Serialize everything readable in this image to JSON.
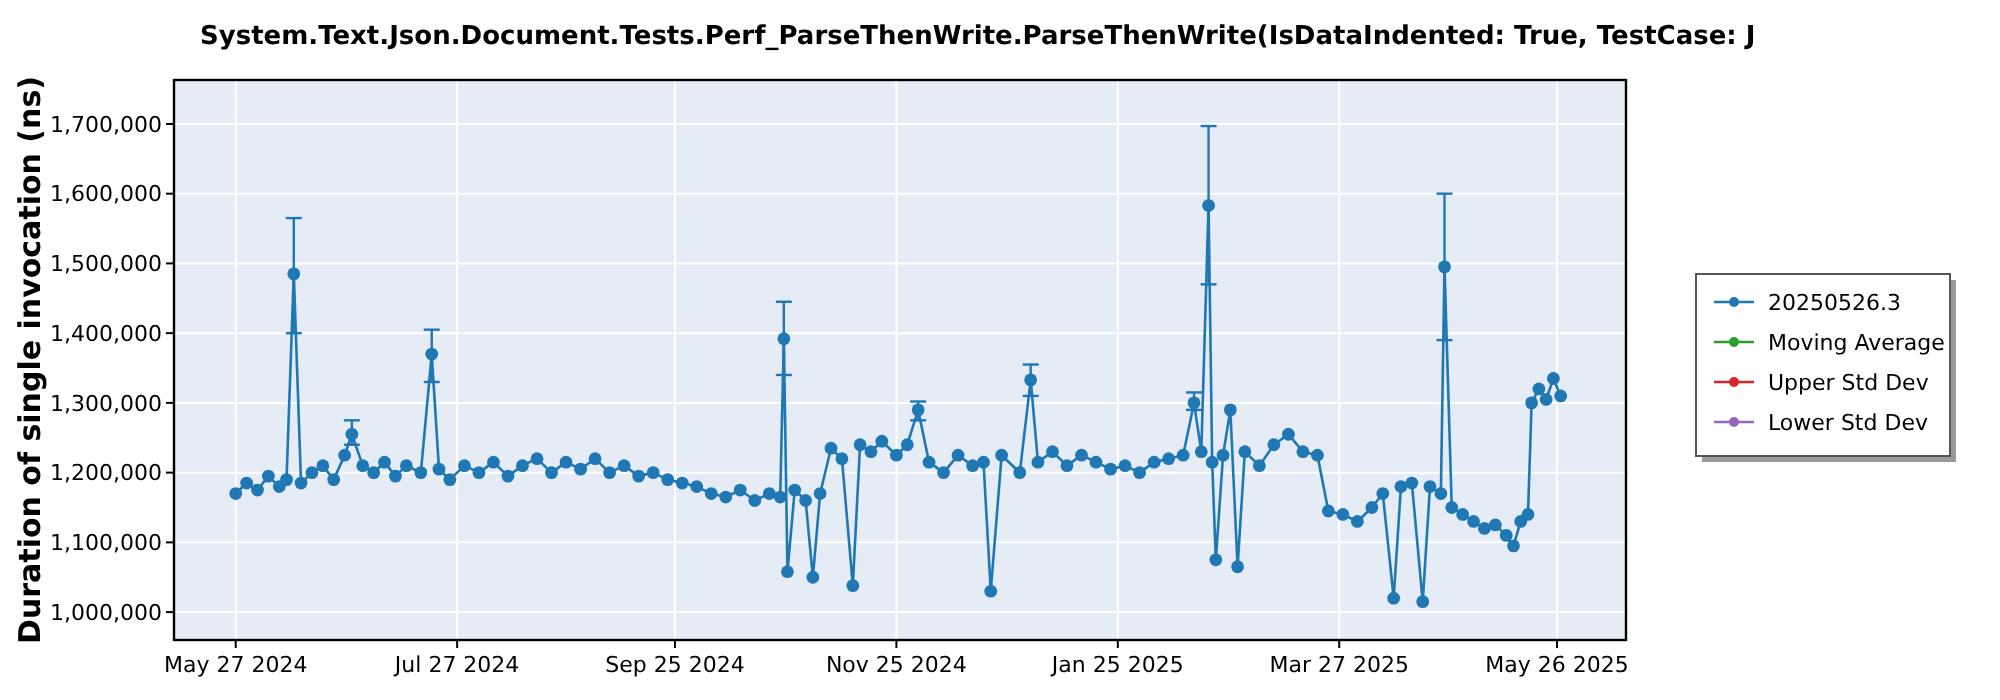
{
  "chart_data": {
    "type": "line",
    "title": "System.Text.Json.Document.Tests.Perf_ParseThenWrite.ParseThenWrite(IsDataIndented: True, TestCase: J",
    "ylabel": "Duration of single invocation (ns)",
    "xlim": [
      "2024-05-10",
      "2025-06-14"
    ],
    "xticks": [
      {
        "value": "2024-05-27",
        "label": "May 27 2024"
      },
      {
        "value": "2024-07-27",
        "label": "Jul 27 2024"
      },
      {
        "value": "2024-09-25",
        "label": "Sep 25 2024"
      },
      {
        "value": "2024-11-25",
        "label": "Nov 25 2024"
      },
      {
        "value": "2025-01-25",
        "label": "Jan 25 2025"
      },
      {
        "value": "2025-03-27",
        "label": "Mar 27 2025"
      },
      {
        "value": "2025-05-26",
        "label": "May 26 2025"
      }
    ],
    "ylim": [
      960000,
      1763000
    ],
    "yticks": [
      {
        "value": 1000000,
        "label": "1,000,000"
      },
      {
        "value": 1100000,
        "label": "1,100,000"
      },
      {
        "value": 1200000,
        "label": "1,200,000"
      },
      {
        "value": 1300000,
        "label": "1,300,000"
      },
      {
        "value": 1400000,
        "label": "1,400,000"
      },
      {
        "value": 1500000,
        "label": "1,500,000"
      },
      {
        "value": 1600000,
        "label": "1,600,000"
      },
      {
        "value": 1700000,
        "label": "1,700,000"
      }
    ],
    "grid": true,
    "legend": "right",
    "marker": "circle",
    "line_style": "solid",
    "series": [
      {
        "name": "20250526.3",
        "color": "#1f77b4",
        "x": [
          "2024-05-27",
          "2024-05-30",
          "2024-06-02",
          "2024-06-05",
          "2024-06-08",
          "2024-06-10",
          "2024-06-12",
          "2024-06-14",
          "2024-06-17",
          "2024-06-20",
          "2024-06-23",
          "2024-06-26",
          "2024-06-28",
          "2024-07-01",
          "2024-07-04",
          "2024-07-07",
          "2024-07-10",
          "2024-07-13",
          "2024-07-17",
          "2024-07-20",
          "2024-07-22",
          "2024-07-25",
          "2024-07-29",
          "2024-08-02",
          "2024-08-06",
          "2024-08-10",
          "2024-08-14",
          "2024-08-18",
          "2024-08-22",
          "2024-08-26",
          "2024-08-30",
          "2024-09-03",
          "2024-09-07",
          "2024-09-11",
          "2024-09-15",
          "2024-09-19",
          "2024-09-23",
          "2024-09-27",
          "2024-10-01",
          "2024-10-05",
          "2024-10-09",
          "2024-10-13",
          "2024-10-17",
          "2024-10-21",
          "2024-10-24",
          "2024-10-25",
          "2024-10-26",
          "2024-10-28",
          "2024-10-31",
          "2024-11-02",
          "2024-11-04",
          "2024-11-07",
          "2024-11-10",
          "2024-11-13",
          "2024-11-15",
          "2024-11-18",
          "2024-11-21",
          "2024-11-25",
          "2024-11-28",
          "2024-12-01",
          "2024-12-04",
          "2024-12-08",
          "2024-12-12",
          "2024-12-16",
          "2024-12-19",
          "2024-12-21",
          "2024-12-24",
          "2024-12-29",
          "2025-01-01",
          "2025-01-03",
          "2025-01-07",
          "2025-01-11",
          "2025-01-15",
          "2025-01-19",
          "2025-01-23",
          "2025-01-27",
          "2025-01-31",
          "2025-02-04",
          "2025-02-08",
          "2025-02-12",
          "2025-02-15",
          "2025-02-17",
          "2025-02-19",
          "2025-02-20",
          "2025-02-21",
          "2025-02-23",
          "2025-02-25",
          "2025-02-27",
          "2025-03-01",
          "2025-03-05",
          "2025-03-09",
          "2025-03-13",
          "2025-03-17",
          "2025-03-21",
          "2025-03-24",
          "2025-03-28",
          "2025-04-01",
          "2025-04-05",
          "2025-04-08",
          "2025-04-11",
          "2025-04-13",
          "2025-04-16",
          "2025-04-19",
          "2025-04-21",
          "2025-04-24",
          "2025-04-25",
          "2025-04-27",
          "2025-04-30",
          "2025-05-03",
          "2025-05-06",
          "2025-05-09",
          "2025-05-12",
          "2025-05-14",
          "2025-05-16",
          "2025-05-18",
          "2025-05-19",
          "2025-05-21",
          "2025-05-23",
          "2025-05-25",
          "2025-05-27"
        ],
        "values": [
          1170000,
          1185000,
          1175000,
          1195000,
          1180000,
          1190000,
          1485000,
          1185000,
          1200000,
          1210000,
          1190000,
          1225000,
          1255000,
          1210000,
          1200000,
          1215000,
          1195000,
          1210000,
          1200000,
          1370000,
          1205000,
          1190000,
          1210000,
          1200000,
          1215000,
          1195000,
          1210000,
          1220000,
          1200000,
          1215000,
          1205000,
          1220000,
          1200000,
          1210000,
          1195000,
          1200000,
          1190000,
          1185000,
          1180000,
          1170000,
          1165000,
          1175000,
          1160000,
          1170000,
          1165000,
          1392000,
          1058000,
          1175000,
          1160000,
          1050000,
          1170000,
          1235000,
          1220000,
          1038000,
          1240000,
          1230000,
          1245000,
          1225000,
          1240000,
          1290000,
          1215000,
          1200000,
          1225000,
          1210000,
          1215000,
          1030000,
          1225000,
          1200000,
          1333000,
          1215000,
          1230000,
          1210000,
          1225000,
          1215000,
          1205000,
          1210000,
          1200000,
          1215000,
          1220000,
          1225000,
          1300000,
          1230000,
          1583000,
          1215000,
          1075000,
          1225000,
          1290000,
          1065000,
          1230000,
          1210000,
          1240000,
          1255000,
          1230000,
          1225000,
          1145000,
          1140000,
          1130000,
          1150000,
          1170000,
          1020000,
          1180000,
          1185000,
          1015000,
          1180000,
          1170000,
          1495000,
          1150000,
          1140000,
          1130000,
          1120000,
          1125000,
          1110000,
          1095000,
          1130000,
          1140000,
          1300000,
          1320000,
          1305000,
          1335000,
          1310000
        ],
        "errors": [
          null,
          null,
          null,
          null,
          null,
          null,
          [
            1400000,
            1565000
          ],
          null,
          null,
          null,
          null,
          null,
          [
            1240000,
            1275000
          ],
          null,
          null,
          null,
          null,
          null,
          null,
          [
            1330000,
            1405000
          ],
          null,
          null,
          null,
          null,
          null,
          null,
          null,
          null,
          null,
          null,
          null,
          null,
          null,
          null,
          null,
          null,
          null,
          null,
          null,
          null,
          null,
          null,
          null,
          null,
          null,
          [
            1340000,
            1445000
          ],
          null,
          null,
          null,
          null,
          null,
          null,
          null,
          null,
          null,
          null,
          null,
          null,
          null,
          [
            1275000,
            1302000
          ],
          null,
          null,
          null,
          null,
          null,
          null,
          null,
          null,
          [
            1310000,
            1355000
          ],
          null,
          null,
          null,
          null,
          null,
          null,
          null,
          null,
          null,
          null,
          null,
          [
            1290000,
            1315000
          ],
          null,
          [
            1470000,
            1697000
          ],
          null,
          null,
          null,
          null,
          null,
          null,
          null,
          null,
          null,
          null,
          null,
          null,
          null,
          null,
          null,
          null,
          null,
          null,
          null,
          null,
          null,
          null,
          [
            1390000,
            1600000
          ],
          null,
          null,
          null,
          null,
          null,
          null,
          null,
          null,
          null,
          null,
          null,
          null,
          null,
          null
        ]
      },
      {
        "name": "Moving Average",
        "color": "#2ca02c"
      },
      {
        "name": "Upper Std Dev",
        "color": "#d62728"
      },
      {
        "name": "Lower Std Dev",
        "color": "#9467bd"
      }
    ]
  }
}
